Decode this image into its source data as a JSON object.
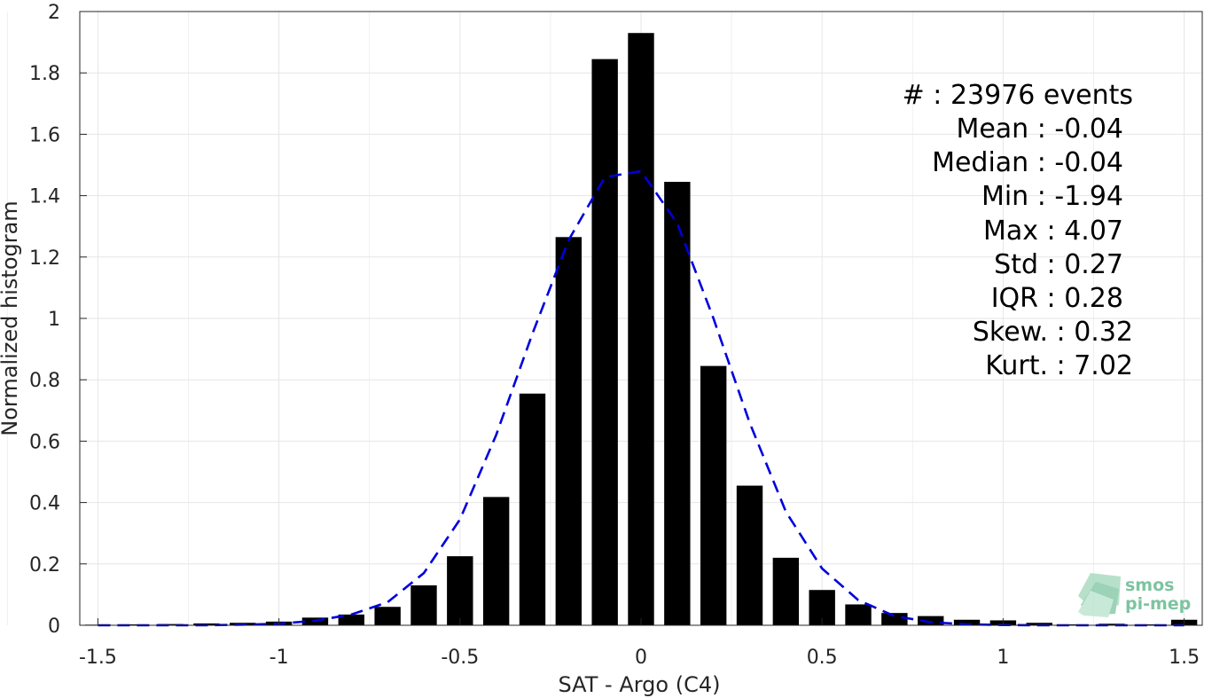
{
  "chart_data": {
    "type": "bar",
    "xlabel": "SAT - Argo (C4)",
    "ylabel": "Normalized histogram",
    "xlim": [
      -1.55,
      1.55
    ],
    "ylim": [
      0,
      2
    ],
    "xticks": [
      -1.5,
      -1,
      -0.5,
      0,
      0.5,
      1,
      1.5
    ],
    "xtick_labels": [
      "-1.5",
      "-1",
      "-0.5",
      "0",
      "0.5",
      "1",
      "1.5"
    ],
    "yticks": [
      0,
      0.2,
      0.4,
      0.6,
      0.8,
      1,
      1.2,
      1.4,
      1.6,
      1.8,
      2
    ],
    "ytick_labels": [
      "0",
      "0.2",
      "0.4",
      "0.6",
      "0.8",
      "1",
      "1.2",
      "1.4",
      "1.6",
      "1.8",
      "2"
    ],
    "grid": true,
    "bar_color": "#000000",
    "curve_color": "#0000dd",
    "bin_width": 0.1,
    "bars": {
      "x": [
        -1.5,
        -1.4,
        -1.3,
        -1.2,
        -1.1,
        -1.0,
        -0.9,
        -0.8,
        -0.7,
        -0.6,
        -0.5,
        -0.4,
        -0.3,
        -0.2,
        -0.1,
        0.0,
        0.1,
        0.2,
        0.3,
        0.4,
        0.5,
        0.6,
        0.7,
        0.8,
        0.9,
        1.0,
        1.1,
        1.2,
        1.3,
        1.4,
        1.5
      ],
      "values": [
        0.002,
        0.003,
        0.004,
        0.006,
        0.008,
        0.012,
        0.025,
        0.035,
        0.06,
        0.13,
        0.225,
        0.418,
        0.755,
        1.265,
        1.845,
        1.93,
        1.445,
        0.845,
        0.455,
        0.22,
        0.115,
        0.068,
        0.04,
        0.03,
        0.018,
        0.016,
        0.008,
        0.003,
        0.005,
        0.003,
        0.018
      ]
    },
    "fit_curve": {
      "style": "dashed",
      "x": [
        -1.5,
        -1.4,
        -1.3,
        -1.2,
        -1.1,
        -1.0,
        -0.9,
        -0.8,
        -0.7,
        -0.6,
        -0.5,
        -0.4,
        -0.3,
        -0.2,
        -0.1,
        0.0,
        0.1,
        0.2,
        0.3,
        0.4,
        0.5,
        0.6,
        0.7,
        0.8,
        0.9,
        1.0,
        1.1,
        1.2,
        1.3,
        1.4,
        1.5
      ],
      "y": [
        0.0,
        0.0,
        0.0,
        0.0,
        0.002,
        0.005,
        0.015,
        0.035,
        0.075,
        0.17,
        0.345,
        0.62,
        0.95,
        1.255,
        1.46,
        1.48,
        1.31,
        1.0,
        0.66,
        0.37,
        0.185,
        0.082,
        0.03,
        0.01,
        0.003,
        0.001,
        0.0,
        0.0,
        0.0,
        0.0,
        0.0
      ]
    }
  },
  "stats": [
    "#  : 23976 events",
    "Mean : -0.04",
    "Median : -0.04",
    "Min : -1.94",
    "Max : 4.07",
    "Std : 0.27",
    "IQR : 0.28",
    "Skew. : 0.32",
    "Kurt. : 7.02"
  ],
  "logo": {
    "line1": "smos",
    "line2": "pi-mep",
    "color": "#7cc4a0"
  }
}
